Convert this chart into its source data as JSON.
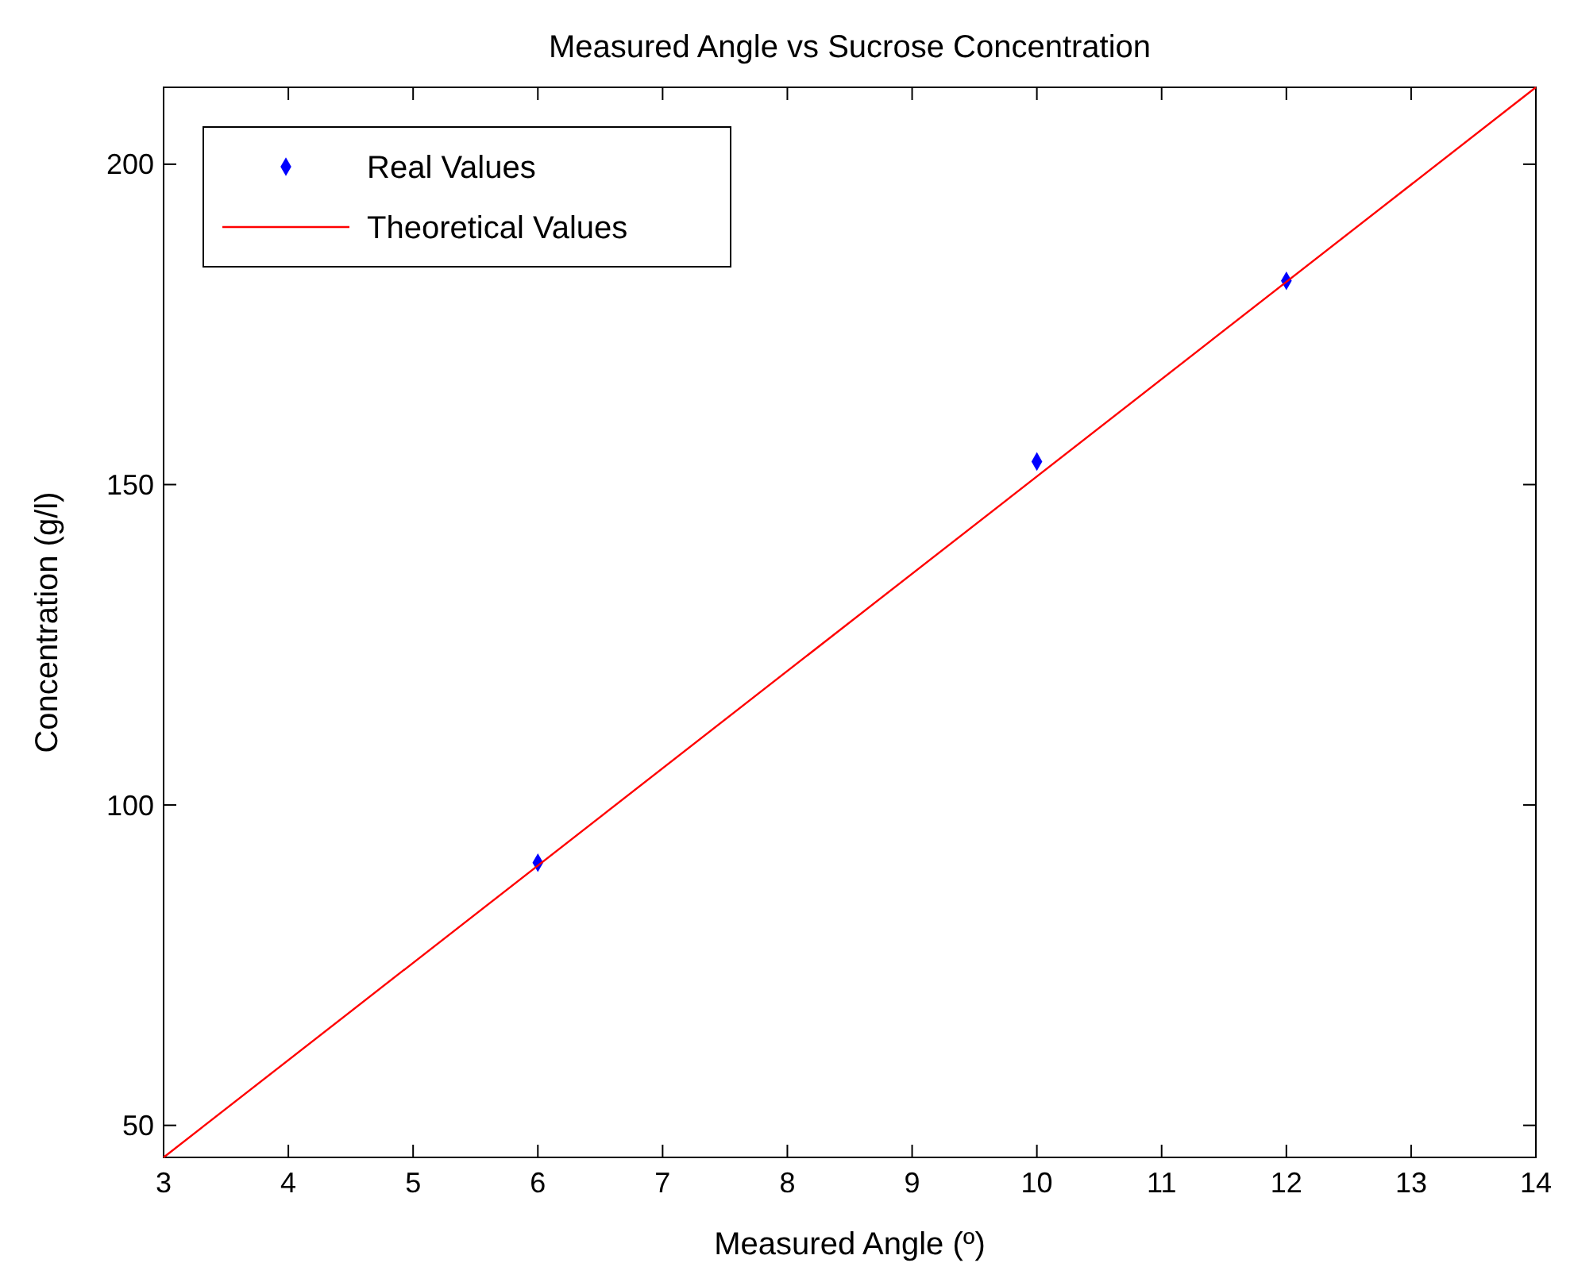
{
  "chart_data": {
    "type": "scatter",
    "title": "Measured Angle vs Sucrose Concentration",
    "xlabel": "Measured Angle (º)",
    "ylabel": "Concentration (g/l)",
    "xlim": [
      3,
      14
    ],
    "ylim": [
      45,
      212
    ],
    "xticks": [
      3,
      4,
      5,
      6,
      7,
      8,
      9,
      10,
      11,
      12,
      13,
      14
    ],
    "yticks": [
      50,
      100,
      150,
      200
    ],
    "grid": false,
    "legend": "top left",
    "series": [
      {
        "name": "Real Values",
        "color": "#0000ff",
        "marker": "diamond",
        "x": [
          6,
          10,
          12
        ],
        "values": [
          91,
          153.6,
          181.8
        ]
      },
      {
        "name": "Theoretical Values",
        "type": "line",
        "color": "#ff0000",
        "marker": "none",
        "line_style": "solid",
        "x": [
          3,
          14
        ],
        "values": [
          45,
          212
        ]
      }
    ]
  }
}
